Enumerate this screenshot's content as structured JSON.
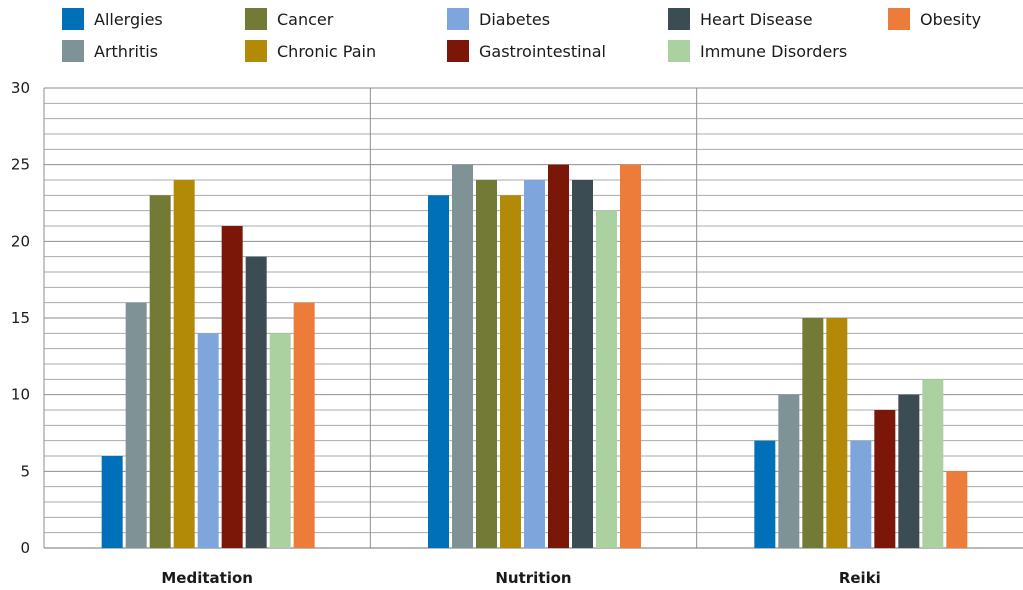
{
  "chart_data": {
    "type": "bar",
    "title": "",
    "xlabel": "",
    "ylabel": "",
    "ylim": [
      0,
      30
    ],
    "yticks": [
      0,
      5,
      10,
      15,
      20,
      25,
      30
    ],
    "grid": true,
    "legend_position": "top",
    "categories": [
      "Meditation",
      "Nutrition",
      "Reiki"
    ],
    "series": [
      {
        "name": "Allergies",
        "color": "#0070b8",
        "values": [
          6,
          23,
          7
        ]
      },
      {
        "name": "Arthritis",
        "color": "#7f9396",
        "values": [
          16,
          25,
          10
        ]
      },
      {
        "name": "Cancer",
        "color": "#737a36",
        "values": [
          23,
          24,
          15
        ]
      },
      {
        "name": "Chronic Pain",
        "color": "#b38a07",
        "values": [
          24,
          23,
          15
        ]
      },
      {
        "name": "Diabetes",
        "color": "#7fa6dc",
        "values": [
          14,
          24,
          7
        ]
      },
      {
        "name": "Gastrointestinal",
        "color": "#7b1709",
        "values": [
          21,
          25,
          9
        ]
      },
      {
        "name": "Heart Disease",
        "color": "#3b4c52",
        "values": [
          19,
          24,
          10
        ]
      },
      {
        "name": "Immune Disorders",
        "color": "#acd1a0",
        "values": [
          14,
          22,
          11
        ]
      },
      {
        "name": "Obesity",
        "color": "#ed7b3a",
        "values": [
          16,
          25,
          5
        ]
      }
    ]
  }
}
